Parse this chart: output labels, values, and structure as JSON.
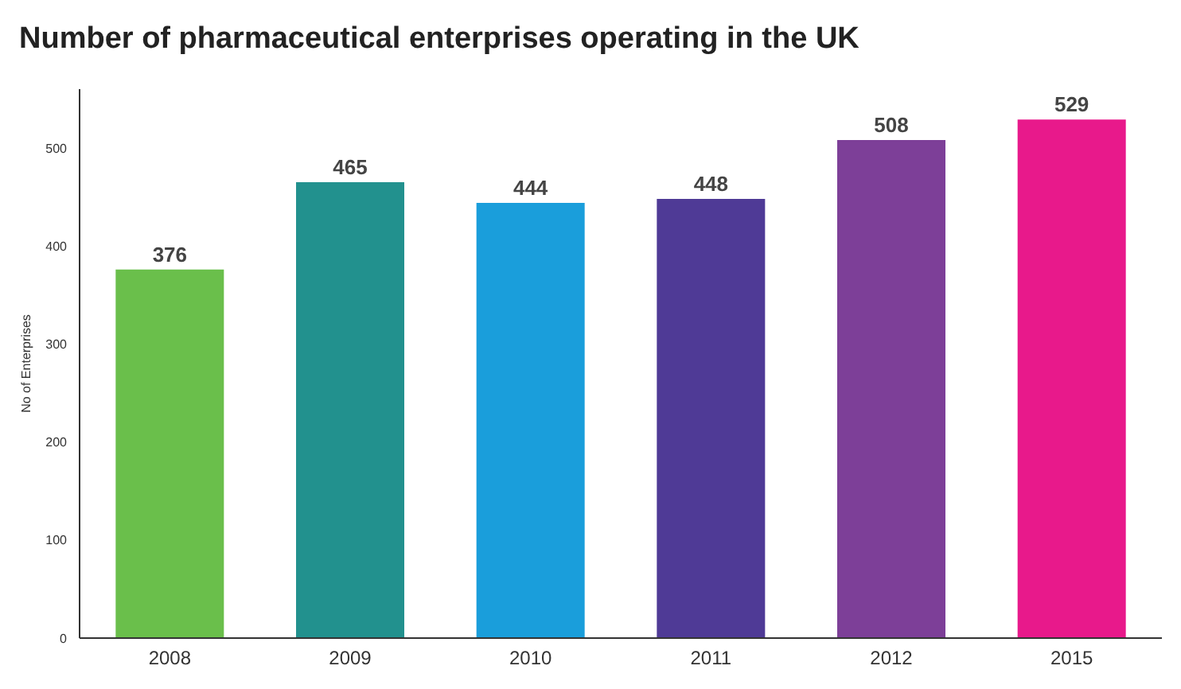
{
  "chart_data": {
    "type": "bar",
    "title": "Number of pharmaceutical enterprises operating in the UK",
    "ylabel": "No of Enterprises",
    "categories": [
      "2008",
      "2009",
      "2010",
      "2011",
      "2012",
      "2015"
    ],
    "values": [
      376,
      465,
      444,
      448,
      508,
      529
    ],
    "colors": [
      "#6abf4b",
      "#22918e",
      "#1a9edb",
      "#4f3a96",
      "#7d3f98",
      "#e8198b"
    ],
    "ylim": [
      0,
      560
    ],
    "yticks": [
      0,
      100,
      200,
      300,
      400,
      500
    ],
    "grid": false,
    "data_labels": true
  }
}
